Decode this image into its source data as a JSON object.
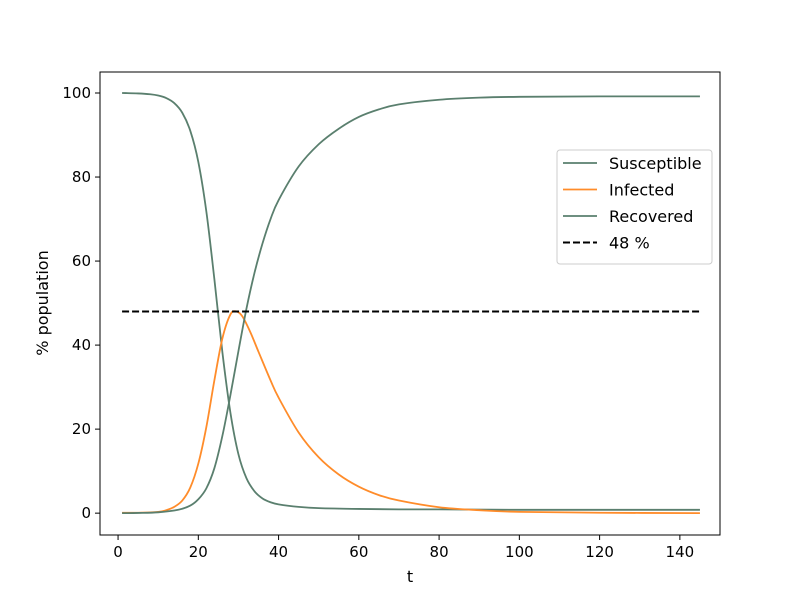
{
  "chart_data": {
    "type": "line",
    "title": "",
    "xlabel": "t",
    "ylabel": "% population",
    "xlim": [
      -4.5,
      150
    ],
    "ylim": [
      -5.2,
      105
    ],
    "xticks": [
      0,
      20,
      40,
      60,
      80,
      100,
      120,
      140
    ],
    "yticks": [
      0,
      20,
      40,
      60,
      80,
      100
    ],
    "grid": false,
    "legend_position": "right",
    "series": [
      {
        "name": "Susceptible",
        "color": "#5a7f6e",
        "style": "solid",
        "x": [
          1,
          5,
          8,
          10,
          12,
          14,
          16,
          18,
          20,
          22,
          24,
          26,
          28,
          30,
          32,
          34,
          36,
          38,
          40,
          45,
          50,
          60,
          70,
          80,
          100,
          120,
          145
        ],
        "y": [
          100,
          99.9,
          99.7,
          99.4,
          98.8,
          97.6,
          95.3,
          91.0,
          83.6,
          71.8,
          55.7,
          38.3,
          23.9,
          14.0,
          8.3,
          5.2,
          3.5,
          2.6,
          2.1,
          1.5,
          1.2,
          1.0,
          0.9,
          0.9,
          0.8,
          0.8,
          0.8
        ]
      },
      {
        "name": "Infected",
        "color": "#ff8c2a",
        "style": "solid",
        "x": [
          1,
          5,
          10,
          12,
          14,
          16,
          18,
          20,
          22,
          24,
          26,
          28,
          29.5,
          31,
          33,
          35,
          38,
          40,
          45,
          50,
          55,
          60,
          65,
          70,
          80,
          90,
          100,
          120,
          145
        ],
        "y": [
          0.1,
          0.1,
          0.3,
          0.7,
          1.5,
          3.0,
          6.1,
          11.8,
          20.5,
          31.6,
          41.6,
          47.3,
          48.0,
          46.8,
          43.0,
          38.4,
          31.6,
          27.5,
          19.2,
          13.3,
          9.2,
          6.3,
          4.3,
          3.0,
          1.4,
          0.7,
          0.3,
          0.1,
          0.0
        ]
      },
      {
        "name": "Recovered",
        "color": "#5a7f6e",
        "style": "solid",
        "x": [
          1,
          5,
          10,
          15,
          18,
          20,
          22,
          24,
          26,
          28,
          30,
          32,
          34,
          36,
          38,
          40,
          45,
          50,
          55,
          60,
          65,
          70,
          80,
          90,
          100,
          120,
          145
        ],
        "y": [
          0,
          0.05,
          0.2,
          0.8,
          1.8,
          3.3,
          5.9,
          10.7,
          18.4,
          28.1,
          38.6,
          48.7,
          57.2,
          64.2,
          70.0,
          74.5,
          82.5,
          87.8,
          91.5,
          94.3,
          96.1,
          97.3,
          98.4,
          98.9,
          99.1,
          99.2,
          99.2
        ]
      },
      {
        "name": "48 %",
        "color": "#000000",
        "style": "dashed",
        "x": [
          1,
          145
        ],
        "y": [
          48,
          48
        ]
      }
    ]
  }
}
